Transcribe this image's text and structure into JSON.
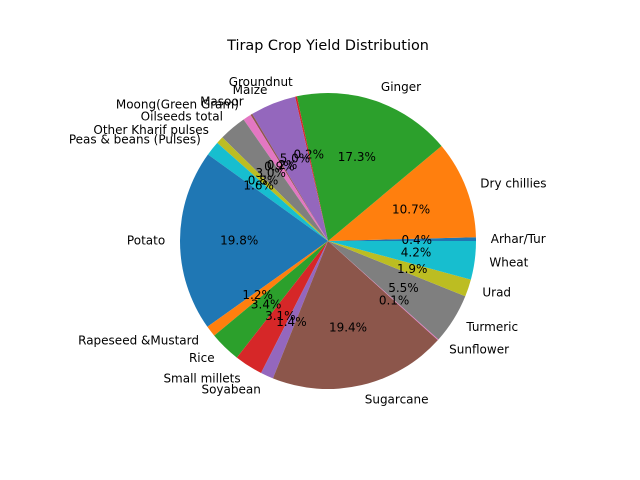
{
  "chart_data": {
    "type": "pie",
    "title": "Tirap Crop Yield Distribution",
    "start_angle_deg": 0,
    "direction": "counterclockwise",
    "categories": [
      "Arhar/Tur",
      "Dry chillies",
      "Ginger",
      "Groundnut",
      "Maize",
      "Masoor",
      "Moong(Green Gram)",
      "Oilseeds total",
      "Other Kharif pulses",
      "Peas & beans (Pulses)",
      "Potato",
      "Rapeseed &Mustard",
      "Rice",
      "Small millets",
      "Soyabean",
      "Sugarcane",
      "Sunflower",
      "Turmeric",
      "Urad",
      "Wheat"
    ],
    "values": [
      0.4,
      10.7,
      17.3,
      0.2,
      5.0,
      0.2,
      0.9,
      3.0,
      0.8,
      1.6,
      19.8,
      1.2,
      3.4,
      3.1,
      1.4,
      19.4,
      0.1,
      5.5,
      1.9,
      4.2
    ],
    "percent_labels": [
      "0.4%",
      "10.7%",
      "17.3%",
      "0.2%",
      "5.0%",
      "0.2%",
      "0.9%",
      "3.0%",
      "0.8%",
      "1.6%",
      "19.8%",
      "1.2%",
      "3.4%",
      "3.1%",
      "1.4%",
      "19.4%",
      "0.1%",
      "5.5%",
      "1.9%",
      "4.2%"
    ],
    "colors": [
      "#1f77b4",
      "#ff7f0e",
      "#2ca02c",
      "#d62728",
      "#9467bd",
      "#8c564b",
      "#e377c2",
      "#7f7f7f",
      "#bcbd22",
      "#17becf",
      "#1f77b4",
      "#ff7f0e",
      "#2ca02c",
      "#d62728",
      "#9467bd",
      "#8c564b",
      "#e377c2",
      "#7f7f7f",
      "#bcbd22",
      "#17becf"
    ]
  }
}
